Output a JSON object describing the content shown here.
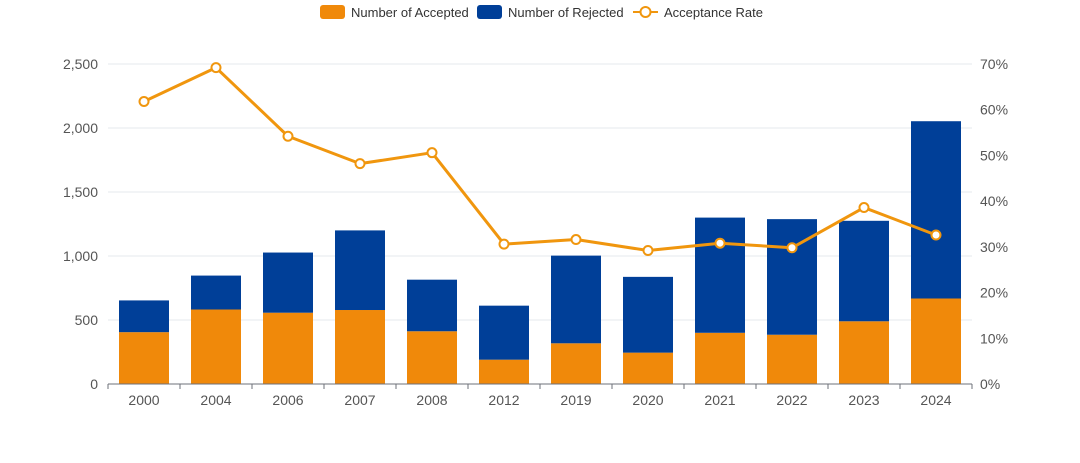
{
  "chart_data": {
    "type": "bar",
    "stacked": true,
    "categories": [
      "2000",
      "2004",
      "2006",
      "2007",
      "2008",
      "2012",
      "2019",
      "2020",
      "2021",
      "2022",
      "2023",
      "2024"
    ],
    "series": [
      {
        "name": "Number of Accepted",
        "type": "bar",
        "axis": "left",
        "color": "#f0890a",
        "values": [
          405,
          582,
          557,
          578,
          412,
          190,
          318,
          245,
          400,
          385,
          490,
          668
        ]
      },
      {
        "name": "Number of Rejected",
        "type": "bar",
        "axis": "left",
        "color": "#003f98",
        "values": [
          248,
          265,
          470,
          622,
          403,
          422,
          685,
          592,
          900,
          903,
          785,
          1385
        ]
      },
      {
        "name": "Acceptance Rate",
        "type": "line",
        "axis": "right",
        "color": "#f0960e",
        "values": [
          61.8,
          69.2,
          54.2,
          48.2,
          50.6,
          30.6,
          31.6,
          29.2,
          30.8,
          29.8,
          38.6,
          32.6
        ]
      }
    ],
    "y_left": {
      "min": 0,
      "max": 2500,
      "ticks": [
        "0",
        "500",
        "1,000",
        "1,500",
        "2,000",
        "2,500"
      ]
    },
    "y_right": {
      "min": 0,
      "max": 70,
      "ticks": [
        "0%",
        "10%",
        "20%",
        "30%",
        "40%",
        "50%",
        "60%",
        "70%"
      ]
    },
    "grid": true,
    "legend_position": "top-center"
  }
}
